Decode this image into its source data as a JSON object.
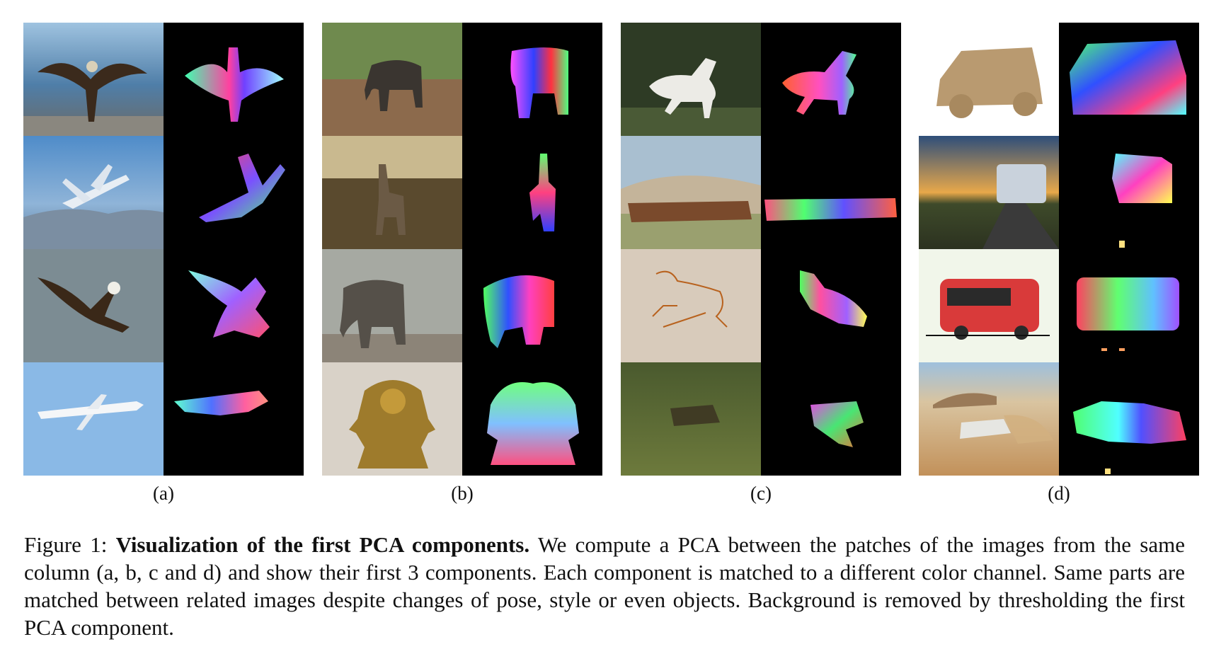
{
  "figure": {
    "columns": [
      {
        "label": "(a)",
        "rows": [
          {
            "photo": "bald-eagle-wings-spread-on-beach",
            "pca": "eagle-pca-map"
          },
          {
            "photo": "airplane-in-blue-sky-over-city",
            "pca": "airplane-pca-map"
          },
          {
            "photo": "bald-eagle-in-flight-gray-background",
            "pca": "flying-eagle-pca-map"
          },
          {
            "photo": "white-airliner-in-sky",
            "pca": "airliner-pca-map"
          }
        ]
      },
      {
        "label": "(b)",
        "rows": [
          {
            "photo": "elephant-on-dirt-hillside",
            "pca": "elephant-pca-map"
          },
          {
            "photo": "elephant-reaching-tree",
            "pca": "reaching-elephant-pca-map"
          },
          {
            "photo": "elephant-in-zoo-enclosure",
            "pca": "zoo-elephant-pca-map"
          },
          {
            "photo": "brass-ganesha-statue",
            "pca": "ganesha-pca-map"
          }
        ]
      },
      {
        "label": "(c)",
        "rows": [
          {
            "photo": "white-horse-galloping-in-forest",
            "pca": "horse-pca-map"
          },
          {
            "photo": "herd-of-horses-running",
            "pca": "herd-pca-map"
          },
          {
            "photo": "horse-line-drawing",
            "pca": "drawing-pca-map"
          },
          {
            "photo": "aerial-herd-on-grassland",
            "pca": "aerial-herd-pca-map"
          }
        ]
      },
      {
        "label": "(d)",
        "rows": [
          {
            "photo": "cardboard-toy-car",
            "pca": "toy-car-pca-map"
          },
          {
            "photo": "bus-on-road-at-sunset",
            "pca": "bus-pca-map"
          },
          {
            "photo": "red-cartoon-bus",
            "pca": "cartoon-bus-pca-map"
          },
          {
            "photo": "suv-driving-in-desert",
            "pca": "suv-pca-map"
          }
        ]
      }
    ]
  },
  "caption": {
    "prefix": "Figure 1: ",
    "bold": "Visualization of the first PCA components.",
    "body": " We compute a PCA between the patches of the images from the same column (a, b, c and d) and show their first 3 components. Each component is matched to a different color channel. Same parts are matched between related images despite changes of pose, style or even objects. Background is removed by thresholding the first PCA component."
  }
}
